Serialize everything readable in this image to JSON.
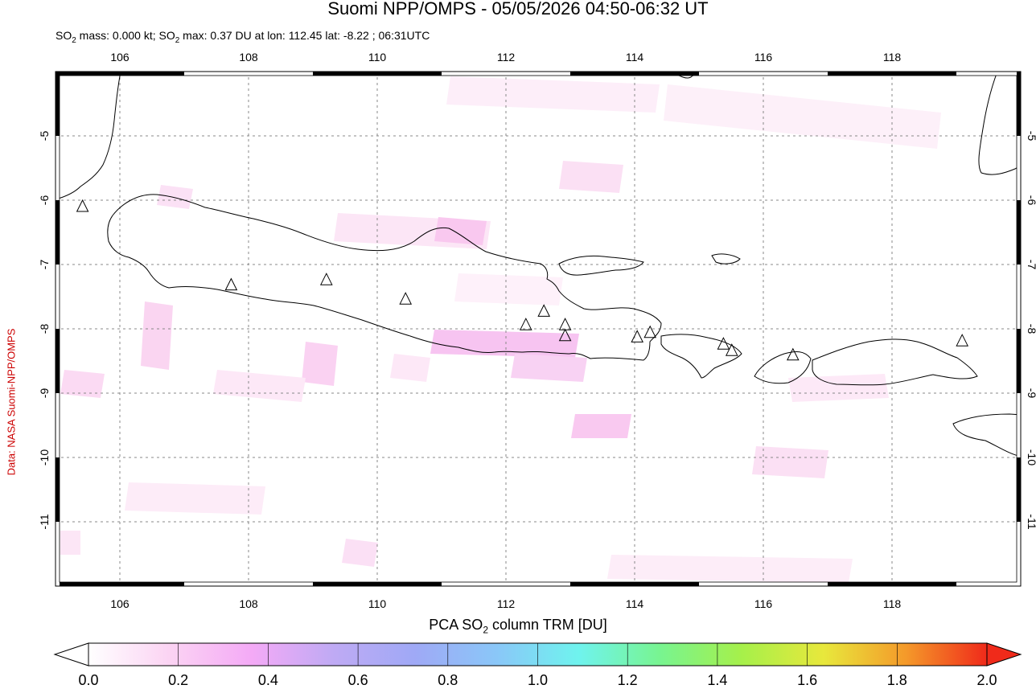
{
  "header": {
    "title": "Suomi NPP/OMPS - 05/05/2026 04:50-06:32 UT",
    "subtitle_prefix": "SO",
    "subtitle_sub": "2",
    "subtitle_mid": " mass: 0.000 kt; SO",
    "subtitle_sub2": "2",
    "subtitle_rest": " max: 0.37 DU at lon: 112.45 lat: -8.22 ; 06:31UTC"
  },
  "side_credit": "Data: NASA Suomi-NPP/OMPS",
  "map": {
    "lon_range": [
      105,
      120
    ],
    "lat_range": [
      -12,
      -4
    ],
    "lon_ticks": [
      "106",
      "108",
      "110",
      "112",
      "114",
      "116",
      "118"
    ],
    "lat_ticks": [
      "-5",
      "-6",
      "-7",
      "-8",
      "-9",
      "-10",
      "-11"
    ],
    "grid": "dashed",
    "volcanoes": [
      {
        "lon": 105.42,
        "lat": -6.1
      },
      {
        "lon": 107.73,
        "lat": -7.32
      },
      {
        "lon": 109.21,
        "lat": -7.24
      },
      {
        "lon": 110.44,
        "lat": -7.54
      },
      {
        "lon": 112.31,
        "lat": -7.94
      },
      {
        "lon": 112.59,
        "lat": -7.73
      },
      {
        "lon": 112.92,
        "lat": -7.94
      },
      {
        "lon": 112.92,
        "lat": -8.11
      },
      {
        "lon": 114.04,
        "lat": -8.13
      },
      {
        "lon": 114.24,
        "lat": -8.06
      },
      {
        "lon": 115.38,
        "lat": -8.24
      },
      {
        "lon": 115.51,
        "lat": -8.34
      },
      {
        "lon": 116.46,
        "lat": -8.41
      },
      {
        "lon": 119.09,
        "lat": -8.19
      }
    ]
  },
  "colorbar": {
    "title_prefix": "PCA SO",
    "title_sub": "2",
    "title_suffix": " column TRM [DU]",
    "ticks": [
      "0.0",
      "0.2",
      "0.4",
      "0.6",
      "0.8",
      "1.0",
      "1.2",
      "1.4",
      "1.6",
      "1.8",
      "2.0"
    ],
    "range": [
      0.0,
      2.0
    ],
    "colors": [
      "#ffffff",
      "#fbd3f3",
      "#f4aaf6",
      "#bfaaf4",
      "#9fa9f6",
      "#8ac7f8",
      "#6ff3ee",
      "#78f490",
      "#a6f04a",
      "#e8e83c",
      "#f49a2a",
      "#f02a1a"
    ]
  }
}
